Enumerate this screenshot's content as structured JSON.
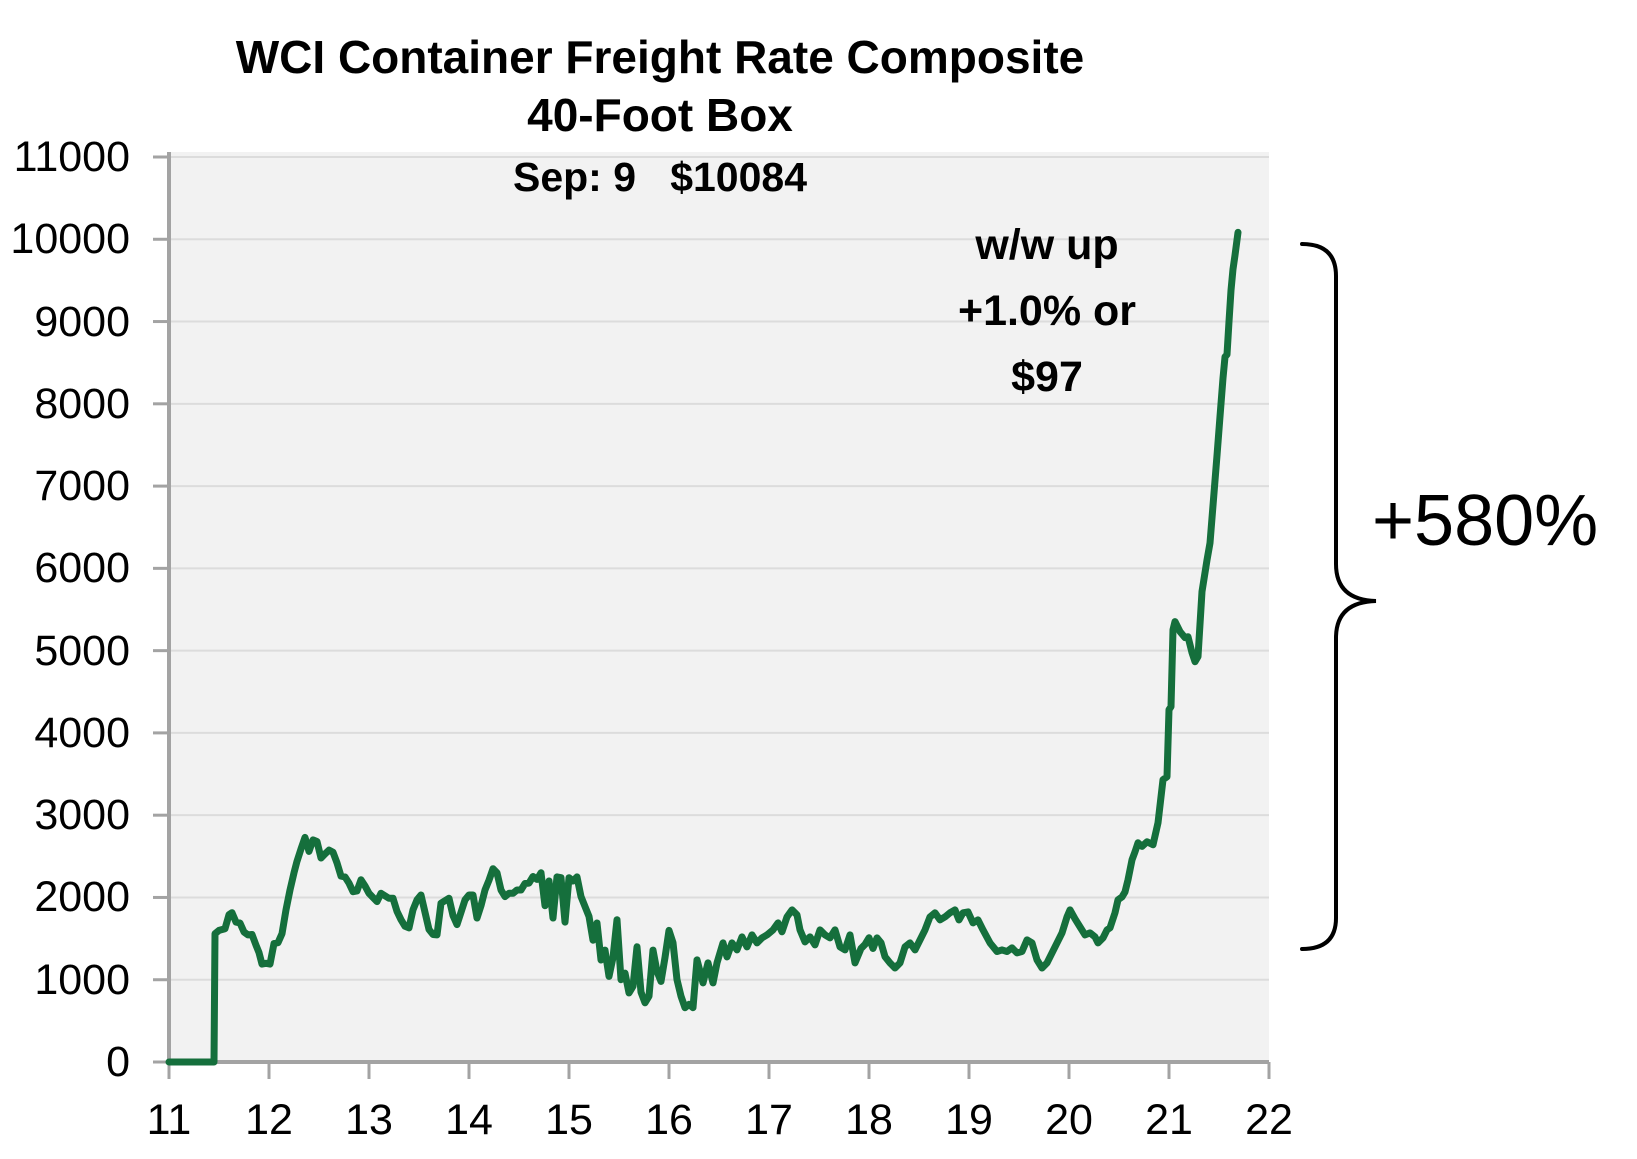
{
  "chart": {
    "title_line1": "WCI Container Freight Rate Composite",
    "title_line2": "40-Foot Box",
    "title_line3": "Sep: 9   $10084",
    "annotation_line1": "w/w up",
    "annotation_line2": "+1.0% or",
    "annotation_line3": "$97",
    "pct_change_label": "+580%"
  },
  "chart_data": {
    "type": "line",
    "title": "WCI Container Freight Rate Composite 40-Foot Box",
    "subtitle": "Sep: 9 $10084",
    "annotations": [
      "w/w up +1.0% or $97",
      "+580%"
    ],
    "xlabel": "",
    "ylabel": "",
    "xlim": [
      11,
      22
    ],
    "ylim": [
      0,
      11000
    ],
    "x_ticks": [
      11,
      12,
      13,
      14,
      15,
      16,
      17,
      18,
      19,
      20,
      21,
      22
    ],
    "y_ticks": [
      0,
      1000,
      2000,
      3000,
      4000,
      5000,
      6000,
      7000,
      8000,
      9000,
      10000,
      11000
    ],
    "grid": "horizontal",
    "legend": "none",
    "plot_bg": "#f2f2f2",
    "grid_color": "#dcdcdc",
    "axis_color": "#a3a3a3",
    "series": [
      {
        "name": "WCI Container Freight Rate Composite 40-Foot Box ($)",
        "color": "#156f3c",
        "x": [
          11.0,
          11.45,
          11.46,
          11.5,
          11.56,
          11.6,
          11.63,
          11.67,
          11.71,
          11.75,
          11.79,
          11.83,
          11.87,
          11.9,
          11.93,
          11.97,
          12.01,
          12.05,
          12.09,
          12.13,
          12.17,
          12.21,
          12.25,
          12.28,
          12.32,
          12.36,
          12.4,
          12.44,
          12.48,
          12.52,
          12.56,
          12.6,
          12.64,
          12.68,
          12.72,
          12.76,
          12.8,
          12.84,
          12.88,
          12.92,
          12.96,
          13.0,
          13.04,
          13.08,
          13.12,
          13.16,
          13.2,
          13.24,
          13.28,
          13.32,
          13.36,
          13.4,
          13.44,
          13.48,
          13.52,
          13.56,
          13.6,
          13.64,
          13.68,
          13.72,
          13.76,
          13.8,
          13.84,
          13.88,
          13.92,
          13.96,
          14.0,
          14.04,
          14.08,
          14.12,
          14.16,
          14.2,
          14.24,
          14.28,
          14.32,
          14.36,
          14.4,
          14.44,
          14.48,
          14.52,
          14.56,
          14.6,
          14.64,
          14.68,
          14.72,
          14.76,
          14.8,
          14.84,
          14.88,
          14.92,
          14.96,
          15.0,
          15.04,
          15.08,
          15.12,
          15.16,
          15.2,
          15.24,
          15.28,
          15.32,
          15.36,
          15.4,
          15.44,
          15.48,
          15.52,
          15.56,
          15.6,
          15.64,
          15.68,
          15.72,
          15.76,
          15.8,
          15.84,
          15.88,
          15.92,
          15.96,
          16.0,
          16.04,
          16.08,
          16.12,
          16.16,
          16.2,
          16.24,
          16.28,
          16.34,
          16.39,
          16.44,
          16.48,
          16.54,
          16.58,
          16.63,
          16.68,
          16.73,
          16.78,
          16.83,
          16.88,
          16.93,
          16.98,
          17.04,
          17.09,
          17.13,
          17.18,
          17.23,
          17.28,
          17.31,
          17.36,
          17.41,
          17.46,
          17.51,
          17.56,
          17.61,
          17.66,
          17.71,
          17.76,
          17.81,
          17.86,
          17.92,
          17.96,
          18.0,
          18.04,
          18.08,
          18.12,
          18.16,
          18.21,
          18.26,
          18.31,
          18.36,
          18.41,
          18.46,
          18.51,
          18.56,
          18.61,
          18.66,
          18.71,
          18.76,
          18.81,
          18.86,
          18.9,
          18.94,
          18.99,
          19.04,
          19.09,
          19.14,
          19.21,
          19.28,
          19.33,
          19.38,
          19.43,
          19.48,
          19.53,
          19.58,
          19.63,
          19.68,
          19.73,
          19.78,
          19.83,
          19.88,
          19.93,
          19.98,
          20.01,
          20.06,
          20.11,
          20.16,
          20.21,
          20.26,
          20.29,
          20.34,
          20.38,
          20.41,
          20.46,
          20.49,
          20.53,
          20.56,
          20.59,
          20.63,
          20.66,
          20.69,
          20.73,
          20.78,
          20.84,
          20.89,
          20.94,
          20.98,
          21.0,
          21.02,
          21.04,
          21.06,
          21.11,
          21.16,
          21.19,
          21.23,
          21.26,
          21.29,
          21.33,
          21.38,
          21.41,
          21.48,
          21.51,
          21.54,
          21.56,
          21.58,
          21.6,
          21.62,
          21.64,
          21.66,
          21.69
        ],
        "y": [
          0,
          0,
          1560,
          1600,
          1620,
          1790,
          1815,
          1700,
          1690,
          1580,
          1545,
          1550,
          1420,
          1330,
          1190,
          1200,
          1190,
          1440,
          1450,
          1560,
          1850,
          2090,
          2300,
          2440,
          2590,
          2730,
          2560,
          2700,
          2680,
          2480,
          2530,
          2575,
          2550,
          2420,
          2260,
          2250,
          2175,
          2070,
          2080,
          2215,
          2140,
          2050,
          2000,
          1950,
          2050,
          2020,
          1990,
          1990,
          1830,
          1730,
          1650,
          1630,
          1850,
          1970,
          2030,
          1820,
          1610,
          1550,
          1545,
          1930,
          1960,
          1990,
          1780,
          1670,
          1820,
          1970,
          2030,
          2030,
          1750,
          1900,
          2090,
          2210,
          2350,
          2300,
          2090,
          2010,
          2050,
          2050,
          2090,
          2090,
          2170,
          2175,
          2255,
          2220,
          2300,
          1900,
          2200,
          1750,
          2250,
          2240,
          1700,
          2240,
          2200,
          2250,
          2010,
          1890,
          1770,
          1480,
          1690,
          1240,
          1360,
          1040,
          1270,
          1730,
          1000,
          1080,
          840,
          920,
          1400,
          850,
          720,
          800,
          1360,
          1100,
          980,
          1270,
          1600,
          1450,
          1000,
          800,
          660,
          700,
          660,
          1241,
          961,
          1204,
          961,
          1204,
          1448,
          1277,
          1448,
          1363,
          1521,
          1399,
          1545,
          1448,
          1509,
          1545,
          1606,
          1691,
          1582,
          1764,
          1849,
          1788,
          1606,
          1460,
          1521,
          1423,
          1606,
          1545,
          1509,
          1606,
          1399,
          1363,
          1545,
          1204,
          1380,
          1430,
          1510,
          1380,
          1509,
          1450,
          1280,
          1204,
          1143,
          1204,
          1399,
          1448,
          1363,
          1484,
          1606,
          1764,
          1813,
          1727,
          1764,
          1813,
          1849,
          1727,
          1813,
          1825,
          1691,
          1727,
          1606,
          1448,
          1343,
          1363,
          1343,
          1387,
          1326,
          1343,
          1484,
          1448,
          1241,
          1143,
          1204,
          1326,
          1448,
          1569,
          1764,
          1849,
          1740,
          1642,
          1545,
          1569,
          1521,
          1448,
          1509,
          1606,
          1630,
          1813,
          1971,
          2007,
          2068,
          2214,
          2457,
          2555,
          2664,
          2620,
          2676,
          2640,
          2907,
          3431,
          3467,
          4282,
          4319,
          5255,
          5353,
          5231,
          5158,
          5170,
          4975,
          4866,
          4927,
          5718,
          6100,
          6308,
          7372,
          7846,
          8313,
          8570,
          8600,
          9000,
          9380,
          9637,
          9807,
          10084
        ]
      }
    ],
    "last_point": {
      "x": 21.69,
      "y": 10084,
      "label": "Sep: 9 $10084"
    }
  }
}
